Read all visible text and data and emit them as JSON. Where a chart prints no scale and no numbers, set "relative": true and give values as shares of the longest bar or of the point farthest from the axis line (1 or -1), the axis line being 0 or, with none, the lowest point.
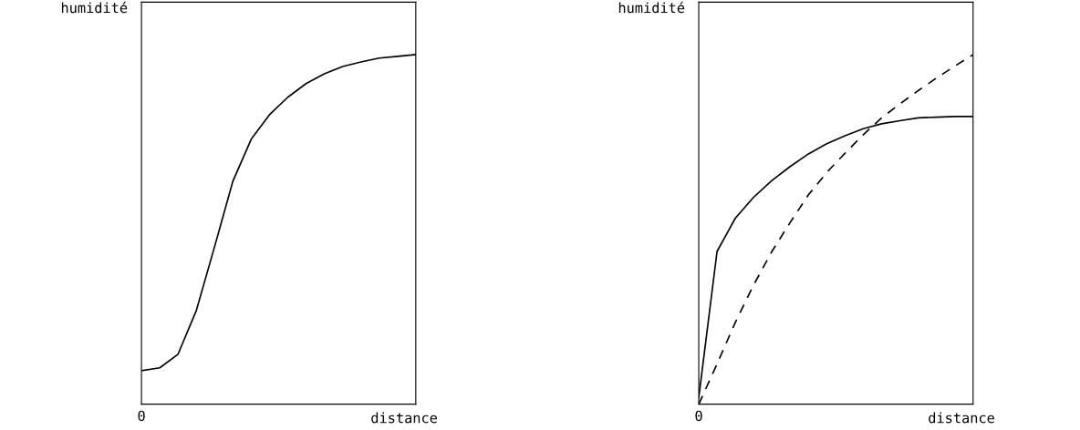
{
  "chart_data": [
    {
      "type": "line",
      "relative": true,
      "ylabel": "humidité",
      "xlabel": "distance",
      "marker": "none",
      "annotations": [
        "0"
      ],
      "categories": [
        null,
        null,
        null,
        null,
        null,
        null,
        null,
        null,
        null,
        null,
        null,
        null,
        null,
        null,
        null,
        null
      ],
      "series": [
        {
          "color": "#000000",
          "line_style": "solid",
          "values": [
            0.096,
            0.104,
            0.143,
            0.268,
            0.451,
            0.638,
            0.758,
            0.828,
            0.878,
            0.917,
            0.945,
            0.966,
            0.979,
            0.99,
            0.995,
            1.0
          ]
        }
      ]
    },
    {
      "type": "line",
      "relative": true,
      "ylabel": "humidité",
      "xlabel": "distance",
      "marker": "none",
      "annotations": [
        "0"
      ],
      "categories": [
        null,
        null,
        null,
        null,
        null,
        null,
        null,
        null,
        null,
        null,
        null,
        null,
        null,
        null,
        null,
        null
      ],
      "series": [
        {
          "color": "#000000",
          "line_style": "solid",
          "values": [
            0.019,
            0.437,
            0.532,
            0.592,
            0.64,
            0.68,
            0.716,
            0.745,
            0.768,
            0.788,
            0.802,
            0.811,
            0.819,
            0.821,
            0.823,
            0.823
          ]
        },
        {
          "color": "#000000",
          "line_style": "dashed",
          "values": [
            0.0,
            0.115,
            0.234,
            0.341,
            0.437,
            0.52,
            0.599,
            0.663,
            0.718,
            0.771,
            0.819,
            0.859,
            0.897,
            0.933,
            0.967,
            1.0
          ]
        }
      ]
    }
  ]
}
